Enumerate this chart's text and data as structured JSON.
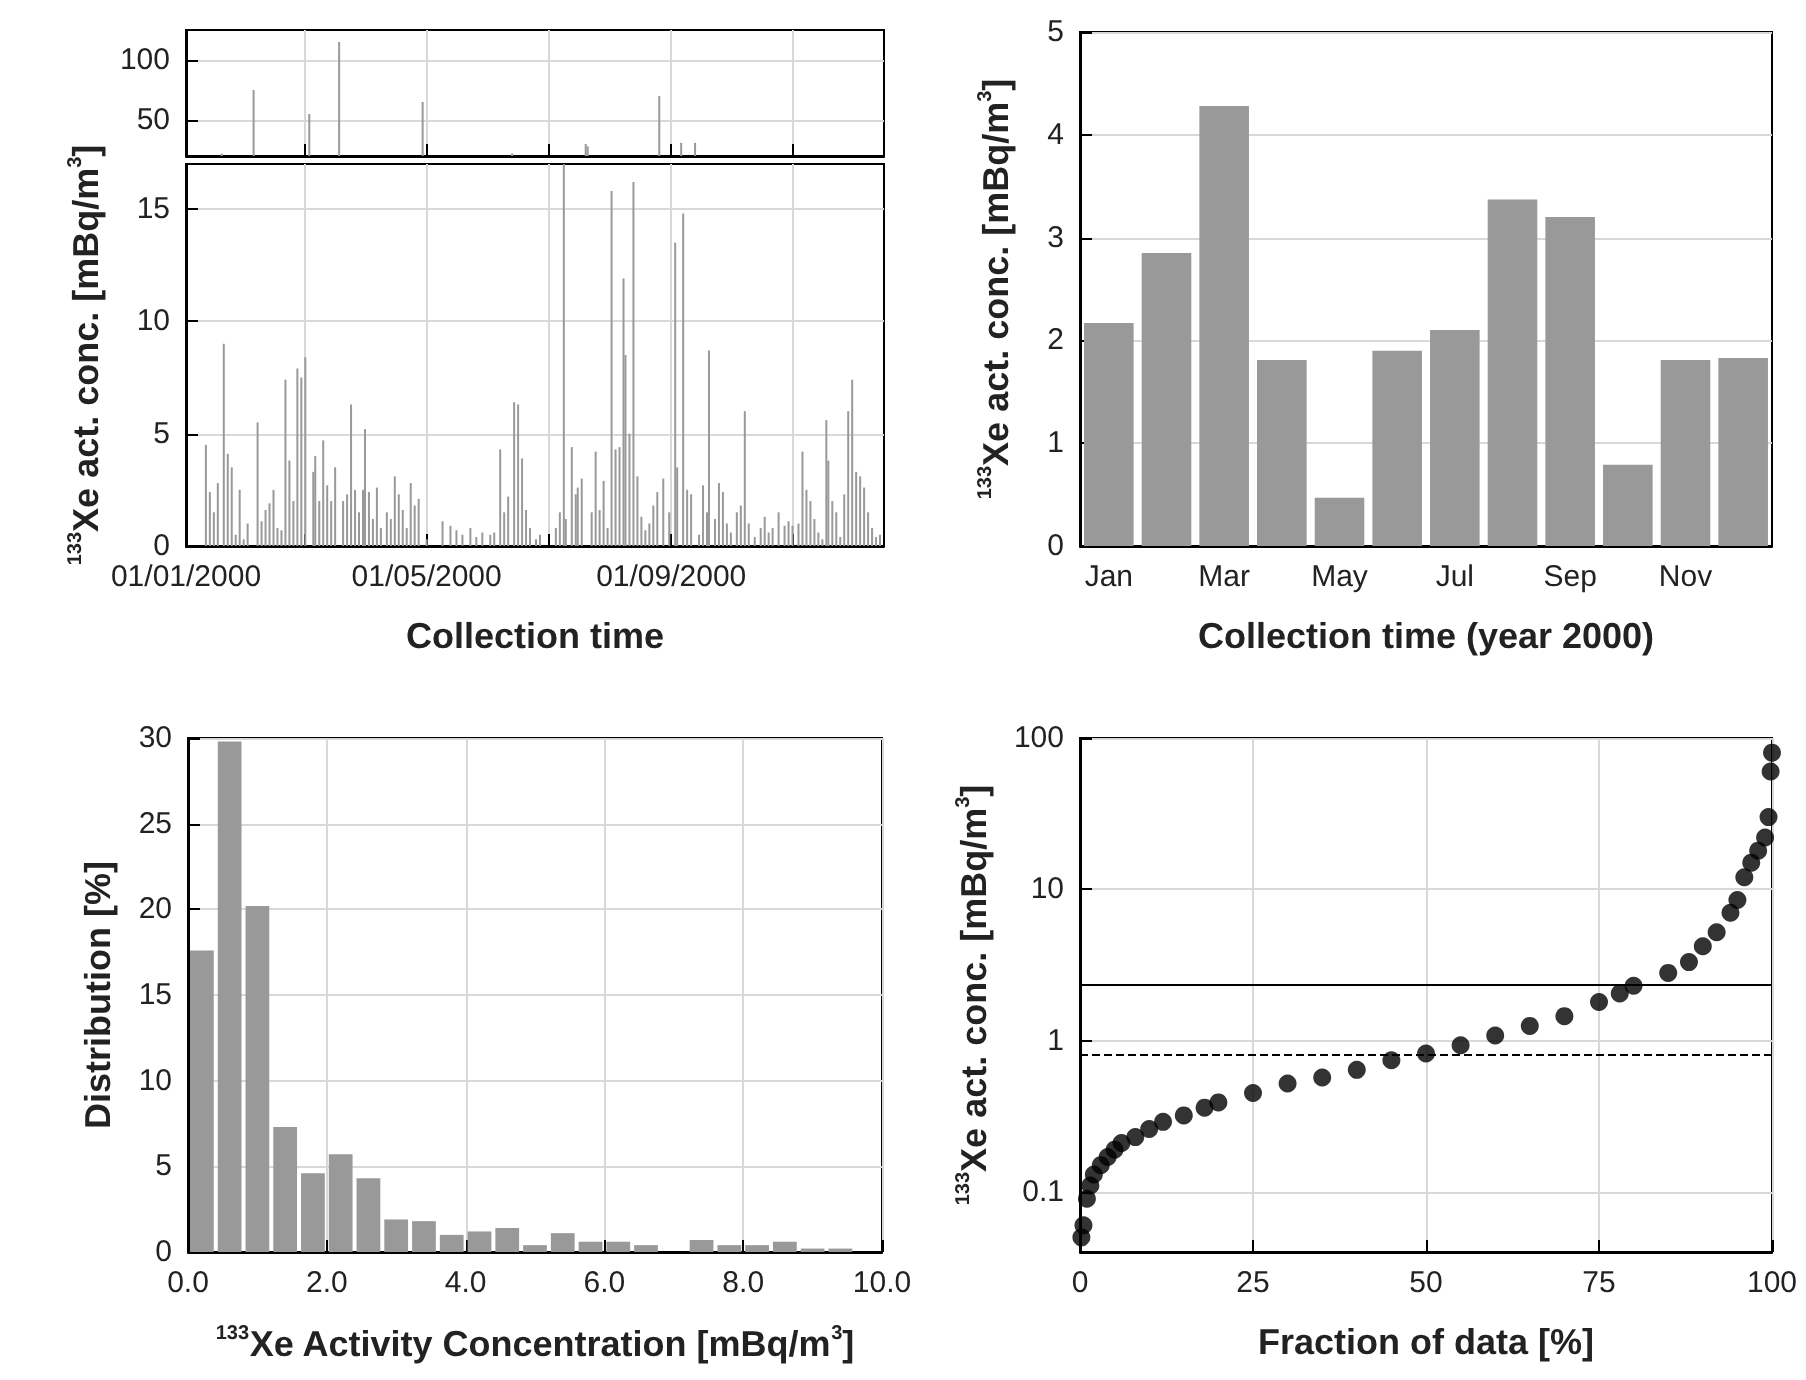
{
  "chart_data": [
    {
      "type": "bar",
      "color": "#999999",
      "grid": true,
      "tick_labels": "y",
      "xlim": [
        "2000-01-01",
        "2000-12-17"
      ],
      "xticks": [
        {
          "value": "2000-01-01",
          "label": null
        },
        {
          "value": "2000-03-01",
          "label": null
        },
        {
          "value": "2000-05-01",
          "label": null
        },
        {
          "value": "2000-07-01",
          "label": null
        },
        {
          "value": "2000-09-01",
          "label": null
        },
        {
          "value": "2000-11-01",
          "label": null
        }
      ],
      "ylim": [
        20,
        125
      ],
      "yticks": [
        50,
        100
      ],
      "x": [
        "2000-01-19",
        "2000-02-04",
        "2000-03-03",
        "2000-03-18",
        "2000-04-29",
        "2000-06-13",
        "2000-07-20",
        "2000-07-21",
        "2000-08-26",
        "2000-09-06",
        "2000-09-13"
      ],
      "values": [
        22,
        75,
        55,
        115,
        65,
        22,
        30,
        28,
        70,
        31,
        31
      ]
    },
    {
      "type": "bar",
      "xlabel": "Collection time",
      "ylabel": "$^{133}$Xe act. conc. [mBq/m$^{3}$]",
      "color": "#999999",
      "grid": true,
      "xlim": [
        "2000-01-01",
        "2000-12-17"
      ],
      "xticks": [
        {
          "value": "2000-01-01",
          "label": "01/01/2000"
        },
        {
          "value": "2000-03-01",
          "label": null
        },
        {
          "value": "2000-05-01",
          "label": "01/05/2000"
        },
        {
          "value": "2000-07-01",
          "label": null
        },
        {
          "value": "2000-09-01",
          "label": "01/09/2000"
        },
        {
          "value": "2000-11-01",
          "label": null
        }
      ],
      "ylim": [
        0,
        17
      ],
      "yticks": [
        0,
        5,
        10,
        15
      ],
      "x": [
        "2000-01-11",
        "2000-01-13",
        "2000-01-15",
        "2000-01-17",
        "2000-01-19",
        "2000-01-20",
        "2000-01-22",
        "2000-01-24",
        "2000-01-26",
        "2000-01-28",
        "2000-01-30",
        "2000-02-01",
        "2000-02-04",
        "2000-02-06",
        "2000-02-08",
        "2000-02-10",
        "2000-02-12",
        "2000-02-14",
        "2000-02-16",
        "2000-02-18",
        "2000-02-20",
        "2000-02-22",
        "2000-02-24",
        "2000-02-26",
        "2000-02-28",
        "2000-03-01",
        "2000-03-03",
        "2000-03-05",
        "2000-03-06",
        "2000-03-08",
        "2000-03-10",
        "2000-03-12",
        "2000-03-14",
        "2000-03-16",
        "2000-03-18",
        "2000-03-20",
        "2000-03-22",
        "2000-03-24",
        "2000-03-26",
        "2000-03-28",
        "2000-03-30",
        "2000-03-31",
        "2000-04-02",
        "2000-04-04",
        "2000-04-06",
        "2000-04-08",
        "2000-04-11",
        "2000-04-13",
        "2000-04-15",
        "2000-04-17",
        "2000-04-19",
        "2000-04-21",
        "2000-04-23",
        "2000-04-25",
        "2000-04-27",
        "2000-04-29",
        "2000-05-01",
        "2000-05-09",
        "2000-05-13",
        "2000-05-16",
        "2000-05-19",
        "2000-05-23",
        "2000-05-26",
        "2000-05-29",
        "2000-06-02",
        "2000-06-04",
        "2000-06-07",
        "2000-06-09",
        "2000-06-11",
        "2000-06-13",
        "2000-06-14",
        "2000-06-16",
        "2000-06-18",
        "2000-06-20",
        "2000-06-22",
        "2000-06-25",
        "2000-06-27",
        "2000-07-05",
        "2000-07-07",
        "2000-07-09",
        "2000-07-10",
        "2000-07-13",
        "2000-07-15",
        "2000-07-16",
        "2000-07-18",
        "2000-07-20",
        "2000-07-21",
        "2000-07-23",
        "2000-07-25",
        "2000-07-27",
        "2000-07-29",
        "2000-07-31",
        "2000-08-02",
        "2000-08-04",
        "2000-08-06",
        "2000-08-08",
        "2000-08-09",
        "2000-08-11",
        "2000-08-13",
        "2000-08-15",
        "2000-08-17",
        "2000-08-19",
        "2000-08-21",
        "2000-08-23",
        "2000-08-25",
        "2000-08-26",
        "2000-08-28",
        "2000-08-31",
        "2000-09-03",
        "2000-09-04",
        "2000-09-06",
        "2000-09-07",
        "2000-09-09",
        "2000-09-11",
        "2000-09-13",
        "2000-09-15",
        "2000-09-17",
        "2000-09-19",
        "2000-09-20",
        "2000-09-23",
        "2000-09-25",
        "2000-09-27",
        "2000-09-29",
        "2000-10-01",
        "2000-10-04",
        "2000-10-06",
        "2000-10-08",
        "2000-10-10",
        "2000-10-13",
        "2000-10-16",
        "2000-10-18",
        "2000-10-20",
        "2000-10-22",
        "2000-10-25",
        "2000-10-28",
        "2000-10-30",
        "2000-11-01",
        "2000-11-04",
        "2000-11-06",
        "2000-11-08",
        "2000-11-10",
        "2000-11-12",
        "2000-11-14",
        "2000-11-16",
        "2000-11-18",
        "2000-11-19",
        "2000-11-21",
        "2000-11-23",
        "2000-11-25",
        "2000-11-27",
        "2000-11-29",
        "2000-12-01",
        "2000-12-03",
        "2000-12-05",
        "2000-12-07",
        "2000-12-09",
        "2000-12-11",
        "2000-12-13",
        "2000-12-15"
      ],
      "values": [
        4.5,
        2.4,
        1.5,
        2.8,
        null,
        9,
        4.1,
        3.5,
        0.5,
        2.5,
        0.3,
        1,
        null,
        5.5,
        1.1,
        1.6,
        1.9,
        2.5,
        0.8,
        0.7,
        7.4,
        3.8,
        2,
        7.9,
        7.5,
        8.4,
        null,
        3.3,
        4,
        2,
        4.7,
        2.7,
        2,
        3.5,
        null,
        2,
        2.3,
        6.3,
        2.5,
        1.5,
        2.5,
        5.2,
        2.4,
        1.2,
        2.6,
        0.8,
        1.5,
        1.2,
        3.1,
        2.3,
        1.6,
        0.8,
        2.8,
        1.8,
        2.1,
        null,
        0.3,
        1.1,
        0.9,
        0.7,
        0.5,
        0.8,
        0.4,
        0.6,
        0.5,
        0.6,
        4.3,
        1.5,
        2.2,
        null,
        6.4,
        6.3,
        3.9,
        1.6,
        0.8,
        0.3,
        0.5,
        0.8,
        1.5,
        17,
        1.2,
        4.4,
        2.3,
        2.6,
        3,
        null,
        null,
        1.5,
        4.2,
        1.6,
        2.9,
        0.8,
        15.8,
        4.3,
        4.4,
        11.9,
        8.5,
        5,
        16.2,
        3.1,
        1.3,
        0.7,
        1,
        1.8,
        2.4,
        null,
        3,
        1.5,
        13.5,
        3.5,
        null,
        14.8,
        2.5,
        2.3,
        null,
        0.5,
        2.7,
        1.5,
        8.7,
        1.2,
        2.8,
        2.4,
        1,
        0.6,
        1.5,
        1.8,
        6,
        1,
        0.4,
        0.8,
        1.3,
        0.6,
        0.8,
        1.5,
        0.9,
        1.1,
        0.9,
        1,
        4.2,
        2.5,
        2,
        1.2,
        0.6,
        0.3,
        5.6,
        3.8,
        2,
        1.5,
        0.4,
        2.3,
        6,
        7.4,
        3.3,
        3.1,
        2.6,
        1.5,
        0.8,
        0.4,
        0.5
      ]
    },
    {
      "type": "bar",
      "xlabel": "Collection time (year 2000)",
      "ylabel": "$^{133}$Xe act. conc. [mBq/m$^{3}$]",
      "color": "#999999",
      "grid": "y",
      "categories": [
        "Jan",
        null,
        "Mar",
        null,
        "May",
        null,
        "Jul",
        null,
        "Sep",
        null,
        "Nov",
        null
      ],
      "values": [
        2.17,
        2.85,
        4.28,
        1.81,
        0.47,
        1.9,
        2.1,
        3.37,
        3.2,
        0.79,
        1.81,
        1.83
      ],
      "ylim": [
        0,
        5
      ],
      "yticks": [
        0,
        1,
        2,
        3,
        4,
        5
      ]
    },
    {
      "type": "histogram",
      "xlabel": "$^{133}$Xe Activity Concentration [mBq/m$^{3}$]",
      "ylabel": "Distribution [%]",
      "color": "#999999",
      "grid": true,
      "bins": [
        0,
        0.4,
        0.8,
        1.2,
        1.6,
        2.0,
        2.4,
        2.8,
        3.2,
        3.6,
        4.0,
        4.4,
        4.8,
        5.2,
        5.6,
        6.0,
        6.4,
        6.8,
        7.2,
        7.6,
        8.0,
        8.4,
        8.8,
        9.2,
        9.6
      ],
      "values": [
        17.6,
        29.8,
        20.2,
        7.3,
        4.6,
        5.7,
        4.3,
        1.9,
        1.8,
        1.0,
        1.2,
        1.4,
        0.4,
        1.1,
        0.6,
        0.6,
        0.4,
        0,
        0.7,
        0.4,
        0.4,
        0.6,
        0.2,
        0.2
      ],
      "xlim": [
        0,
        10
      ],
      "xticks": [
        {
          "value": 0,
          "label": "0.0"
        },
        {
          "value": 2,
          "label": "2.0"
        },
        {
          "value": 4,
          "label": "4.0"
        },
        {
          "value": 6,
          "label": "6.0"
        },
        {
          "value": 8,
          "label": "8.0"
        },
        {
          "value": 10,
          "label": "10.0"
        }
      ],
      "ylim": [
        0,
        30
      ],
      "yticks": [
        0,
        5,
        10,
        15,
        20,
        25,
        30
      ]
    },
    {
      "type": "scatter",
      "xlabel": "Fraction of data [%]",
      "ylabel": "$^{133}$Xe act. conc. [mBq/m$^{3}$]",
      "color": "#000000",
      "marker": "circle",
      "grid": true,
      "log": "y",
      "x": [
        0.2,
        0.5,
        1,
        1.5,
        2,
        3,
        4,
        5,
        6,
        8,
        10,
        12,
        15,
        18,
        20,
        25,
        30,
        35,
        40,
        45,
        50,
        55,
        60,
        65,
        70,
        75,
        78,
        80,
        85,
        88,
        90,
        92,
        94,
        95,
        96,
        97,
        98,
        99,
        99.5,
        99.8,
        100
      ],
      "values": [
        0.05,
        0.06,
        0.09,
        0.11,
        0.13,
        0.15,
        0.17,
        0.19,
        0.21,
        0.23,
        0.26,
        0.29,
        0.32,
        0.36,
        0.39,
        0.45,
        0.52,
        0.57,
        0.64,
        0.74,
        0.82,
        0.93,
        1.08,
        1.25,
        1.45,
        1.8,
        2.05,
        2.3,
        2.8,
        3.3,
        4.2,
        5.2,
        7,
        8.5,
        12,
        15,
        18,
        22,
        30,
        60,
        80
      ],
      "xlim": [
        0,
        100
      ],
      "xticks": [
        0,
        25,
        50,
        75,
        100
      ],
      "ylim": [
        0.04,
        100
      ],
      "yticks": [
        0.1,
        1,
        10,
        100
      ],
      "ref_lines": [
        {
          "axis": "y",
          "value": 2.34,
          "color": "#000000",
          "line_style": "solid"
        },
        {
          "axis": "y",
          "value": 0.8,
          "color": "#000000",
          "line_style": "dashed"
        }
      ]
    }
  ]
}
